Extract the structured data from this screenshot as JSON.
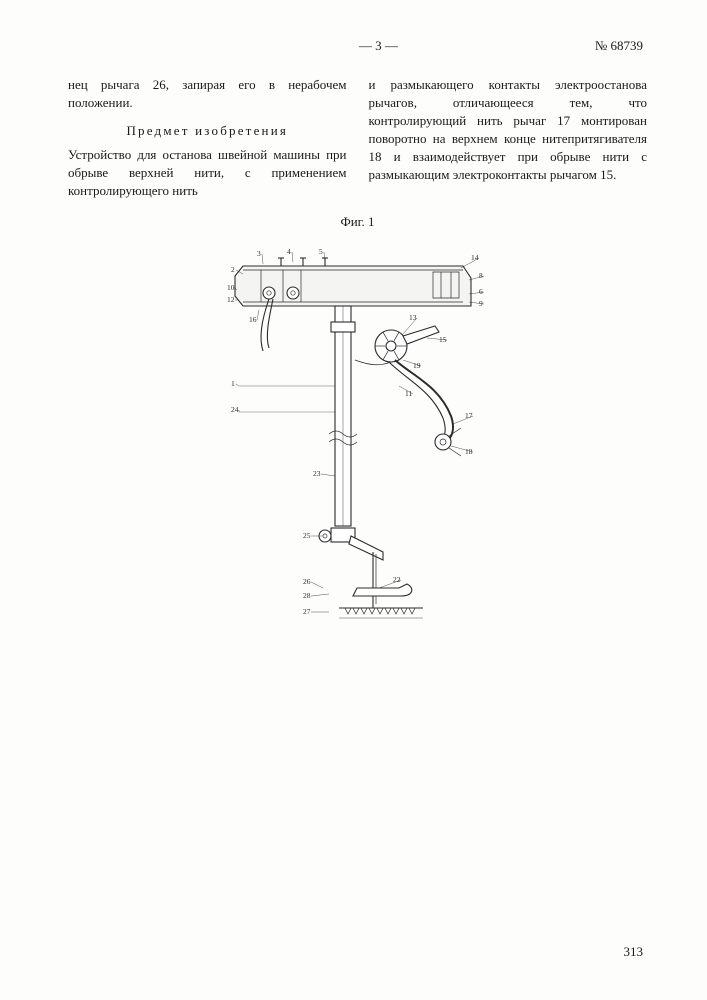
{
  "header": {
    "page_marker": "— 3 —",
    "doc_number": "№ 68739"
  },
  "text": {
    "p1": "нец рычага 26, запирая его в нерабочем положении.",
    "subject_heading": "Предмет изобретения",
    "p2": "Устройство для останова швейной машины при обрыве верхней нити, с применением контролирующего нить",
    "p3": "и размыкающего контакты электроостанова рычагов, отличающееся тем, что контролирующий нить рычаг 17 монтирован поворотно на верхнем конце нитепритягивателя 18 и взаимодействует при обрыве нити с размыкающим электроконтакты рычагом 15."
  },
  "figure": {
    "label": "Фиг. 1",
    "stroke": "#2b2b2b",
    "fill_light": "#f4f4f2",
    "stroke_width": 1.1,
    "thin_width": 0.7
  },
  "footer": {
    "page_number": "313"
  }
}
